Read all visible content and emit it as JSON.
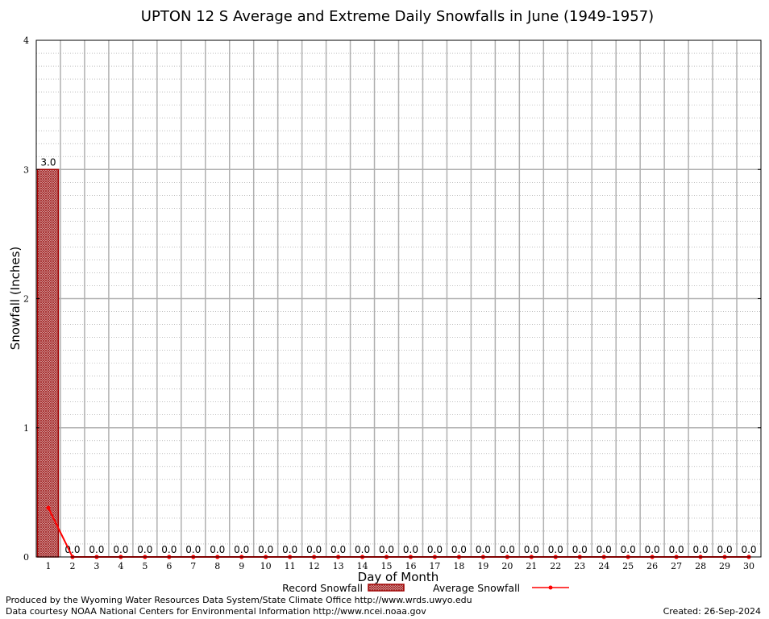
{
  "chart_data": {
    "type": "bar",
    "title": "UPTON 12 S Average and Extreme Daily Snowfalls in June (1949-1957)",
    "xlabel": "Day of Month",
    "ylabel": "Snowfall (Inches)",
    "ylim": [
      0,
      4
    ],
    "yticks": [
      "0",
      "1",
      "2",
      "3",
      "4"
    ],
    "categories": [
      "1",
      "2",
      "3",
      "4",
      "5",
      "6",
      "7",
      "8",
      "9",
      "10",
      "11",
      "12",
      "13",
      "14",
      "15",
      "16",
      "17",
      "18",
      "19",
      "20",
      "21",
      "22",
      "23",
      "24",
      "25",
      "26",
      "27",
      "28",
      "29",
      "30"
    ],
    "series": [
      {
        "name": "Record Snowfall",
        "kind": "bar",
        "values": [
          3.0,
          0,
          0,
          0,
          0,
          0,
          0,
          0,
          0,
          0,
          0,
          0,
          0,
          0,
          0,
          0,
          0,
          0,
          0,
          0,
          0,
          0,
          0,
          0,
          0,
          0,
          0,
          0,
          0,
          0
        ],
        "labels": [
          "3.0",
          "0.0",
          "0.0",
          "0.0",
          "0.0",
          "0.0",
          "0.0",
          "0.0",
          "0.0",
          "0.0",
          "0.0",
          "0.0",
          "0.0",
          "0.0",
          "0.0",
          "0.0",
          "0.0",
          "0.0",
          "0.0",
          "0.0",
          "0.0",
          "0.0",
          "0.0",
          "0.0",
          "0.0",
          "0.0",
          "0.0",
          "0.0",
          "0.0",
          "0.0"
        ]
      },
      {
        "name": "Average Snowfall",
        "kind": "line",
        "values": [
          0.38,
          0,
          0,
          0,
          0,
          0,
          0,
          0,
          0,
          0,
          0,
          0,
          0,
          0,
          0,
          0,
          0,
          0,
          0,
          0,
          0,
          0,
          0,
          0,
          0,
          0,
          0,
          0,
          0,
          0
        ]
      }
    ],
    "colors": {
      "bar_fill": "#c04040",
      "bar_edge": "#a00000",
      "line": "#ff0000",
      "grid": "#b0b0b0"
    },
    "grid": true,
    "legend_position": "bottom"
  },
  "footer": {
    "producer": "Produced by the Wyoming Water Resources Data System/State Climate Office http://www.wrds.uwyo.edu",
    "source": "Data courtesy NOAA National Centers for Environmental Information http://www.ncei.noaa.gov",
    "created": "Created:  26-Sep-2024"
  }
}
